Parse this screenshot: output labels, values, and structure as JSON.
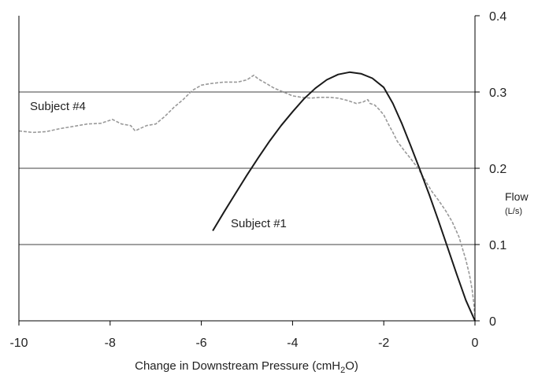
{
  "chart_data": {
    "type": "line",
    "xlabel_prefix": "Change in Downstream Pressure (cmH",
    "xlabel_subscript": "2",
    "xlabel_suffix": "O)",
    "ylabel": "Flow",
    "ylabel_unit": "(L/s)",
    "xlim": [
      -10,
      0
    ],
    "ylim": [
      0,
      0.4
    ],
    "x_ticks": [
      -10,
      -8,
      -6,
      -4,
      -2,
      0
    ],
    "x_tick_labels": [
      "-10",
      "-8",
      "-6",
      "-4",
      "-2",
      "0"
    ],
    "y_ticks": [
      0,
      0.1,
      0.2,
      0.3,
      0.4
    ],
    "y_tick_labels": [
      "0",
      "0.1",
      "0.2",
      "0.3",
      "0.4"
    ],
    "grid": "horizontal",
    "y_axis_side": "right",
    "series": [
      {
        "name": "Subject #4",
        "line_style": "dashed",
        "color": "#999999",
        "points": [
          [
            -10.0,
            0.249
          ],
          [
            -9.7,
            0.247
          ],
          [
            -9.4,
            0.248
          ],
          [
            -9.1,
            0.252
          ],
          [
            -8.8,
            0.255
          ],
          [
            -8.5,
            0.258
          ],
          [
            -8.2,
            0.259
          ],
          [
            -7.95,
            0.264
          ],
          [
            -7.75,
            0.258
          ],
          [
            -7.55,
            0.256
          ],
          [
            -7.45,
            0.249
          ],
          [
            -7.35,
            0.252
          ],
          [
            -7.2,
            0.256
          ],
          [
            -7.0,
            0.258
          ],
          [
            -6.8,
            0.268
          ],
          [
            -6.6,
            0.28
          ],
          [
            -6.4,
            0.29
          ],
          [
            -6.2,
            0.302
          ],
          [
            -6.0,
            0.309
          ],
          [
            -5.8,
            0.311
          ],
          [
            -5.5,
            0.313
          ],
          [
            -5.2,
            0.313
          ],
          [
            -5.0,
            0.316
          ],
          [
            -4.85,
            0.322
          ],
          [
            -4.75,
            0.317
          ],
          [
            -4.6,
            0.312
          ],
          [
            -4.4,
            0.305
          ],
          [
            -4.2,
            0.3
          ],
          [
            -4.0,
            0.295
          ],
          [
            -3.8,
            0.293
          ],
          [
            -3.6,
            0.292
          ],
          [
            -3.4,
            0.293
          ],
          [
            -3.2,
            0.293
          ],
          [
            -3.0,
            0.292
          ],
          [
            -2.8,
            0.289
          ],
          [
            -2.6,
            0.285
          ],
          [
            -2.45,
            0.287
          ],
          [
            -2.35,
            0.29
          ],
          [
            -2.3,
            0.285
          ],
          [
            -2.2,
            0.283
          ],
          [
            -2.1,
            0.277
          ],
          [
            -2.0,
            0.27
          ],
          [
            -1.9,
            0.258
          ],
          [
            -1.8,
            0.247
          ],
          [
            -1.7,
            0.235
          ],
          [
            -1.55,
            0.223
          ],
          [
            -1.4,
            0.212
          ],
          [
            -1.25,
            0.2
          ],
          [
            -1.1,
            0.185
          ],
          [
            -0.95,
            0.17
          ],
          [
            -0.8,
            0.158
          ],
          [
            -0.65,
            0.145
          ],
          [
            -0.5,
            0.13
          ],
          [
            -0.35,
            0.11
          ],
          [
            -0.2,
            0.08
          ],
          [
            -0.12,
            0.06
          ],
          [
            -0.06,
            0.04
          ],
          [
            -0.02,
            0.02
          ],
          [
            0.0,
            0.0
          ]
        ]
      },
      {
        "name": "Subject #1",
        "line_style": "solid",
        "color": "#1a1a1a",
        "points": [
          [
            -5.75,
            0.118
          ],
          [
            -5.5,
            0.143
          ],
          [
            -5.25,
            0.167
          ],
          [
            -5.0,
            0.191
          ],
          [
            -4.75,
            0.214
          ],
          [
            -4.5,
            0.236
          ],
          [
            -4.25,
            0.256
          ],
          [
            -4.0,
            0.274
          ],
          [
            -3.75,
            0.291
          ],
          [
            -3.5,
            0.305
          ],
          [
            -3.25,
            0.316
          ],
          [
            -3.0,
            0.323
          ],
          [
            -2.75,
            0.326
          ],
          [
            -2.5,
            0.324
          ],
          [
            -2.25,
            0.318
          ],
          [
            -2.0,
            0.306
          ],
          [
            -1.8,
            0.285
          ],
          [
            -1.6,
            0.258
          ],
          [
            -1.4,
            0.228
          ],
          [
            -1.2,
            0.197
          ],
          [
            -1.0,
            0.165
          ],
          [
            -0.8,
            0.131
          ],
          [
            -0.6,
            0.096
          ],
          [
            -0.4,
            0.061
          ],
          [
            -0.2,
            0.027
          ],
          [
            0.0,
            0.0
          ]
        ]
      }
    ]
  }
}
